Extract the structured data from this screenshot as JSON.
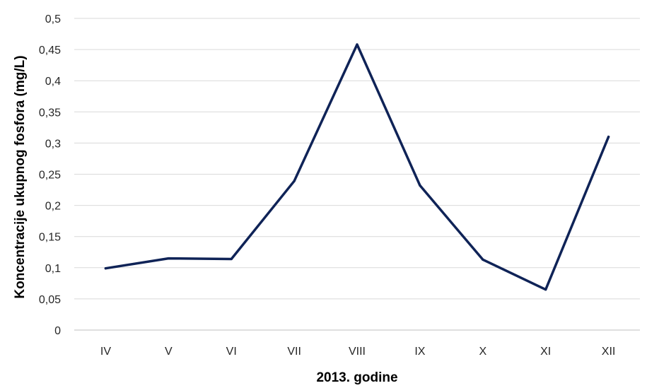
{
  "chart_data": {
    "type": "line",
    "categories": [
      "IV",
      "V",
      "VI",
      "VII",
      "VIII",
      "IX",
      "X",
      "XI",
      "XII"
    ],
    "series": [
      {
        "values": [
          0.099,
          0.115,
          0.114,
          0.239,
          0.458,
          0.232,
          0.113,
          0.065,
          0.31
        ]
      }
    ],
    "xlabel": "2013. godine",
    "ylabel": "Koncentracije ukupnog fosfora (mg/L)",
    "ylim": [
      0,
      0.5
    ],
    "yticks": [
      "0",
      "0,05",
      "0,1",
      "0,15",
      "0,2",
      "0,25",
      "0,3",
      "0,35",
      "0,4",
      "0,45",
      "0,5"
    ],
    "grid": true,
    "legend": "none",
    "colors": {
      "line": "#0f2357",
      "grid": "#d9d9d9",
      "axis": "#bfbfbf"
    }
  }
}
